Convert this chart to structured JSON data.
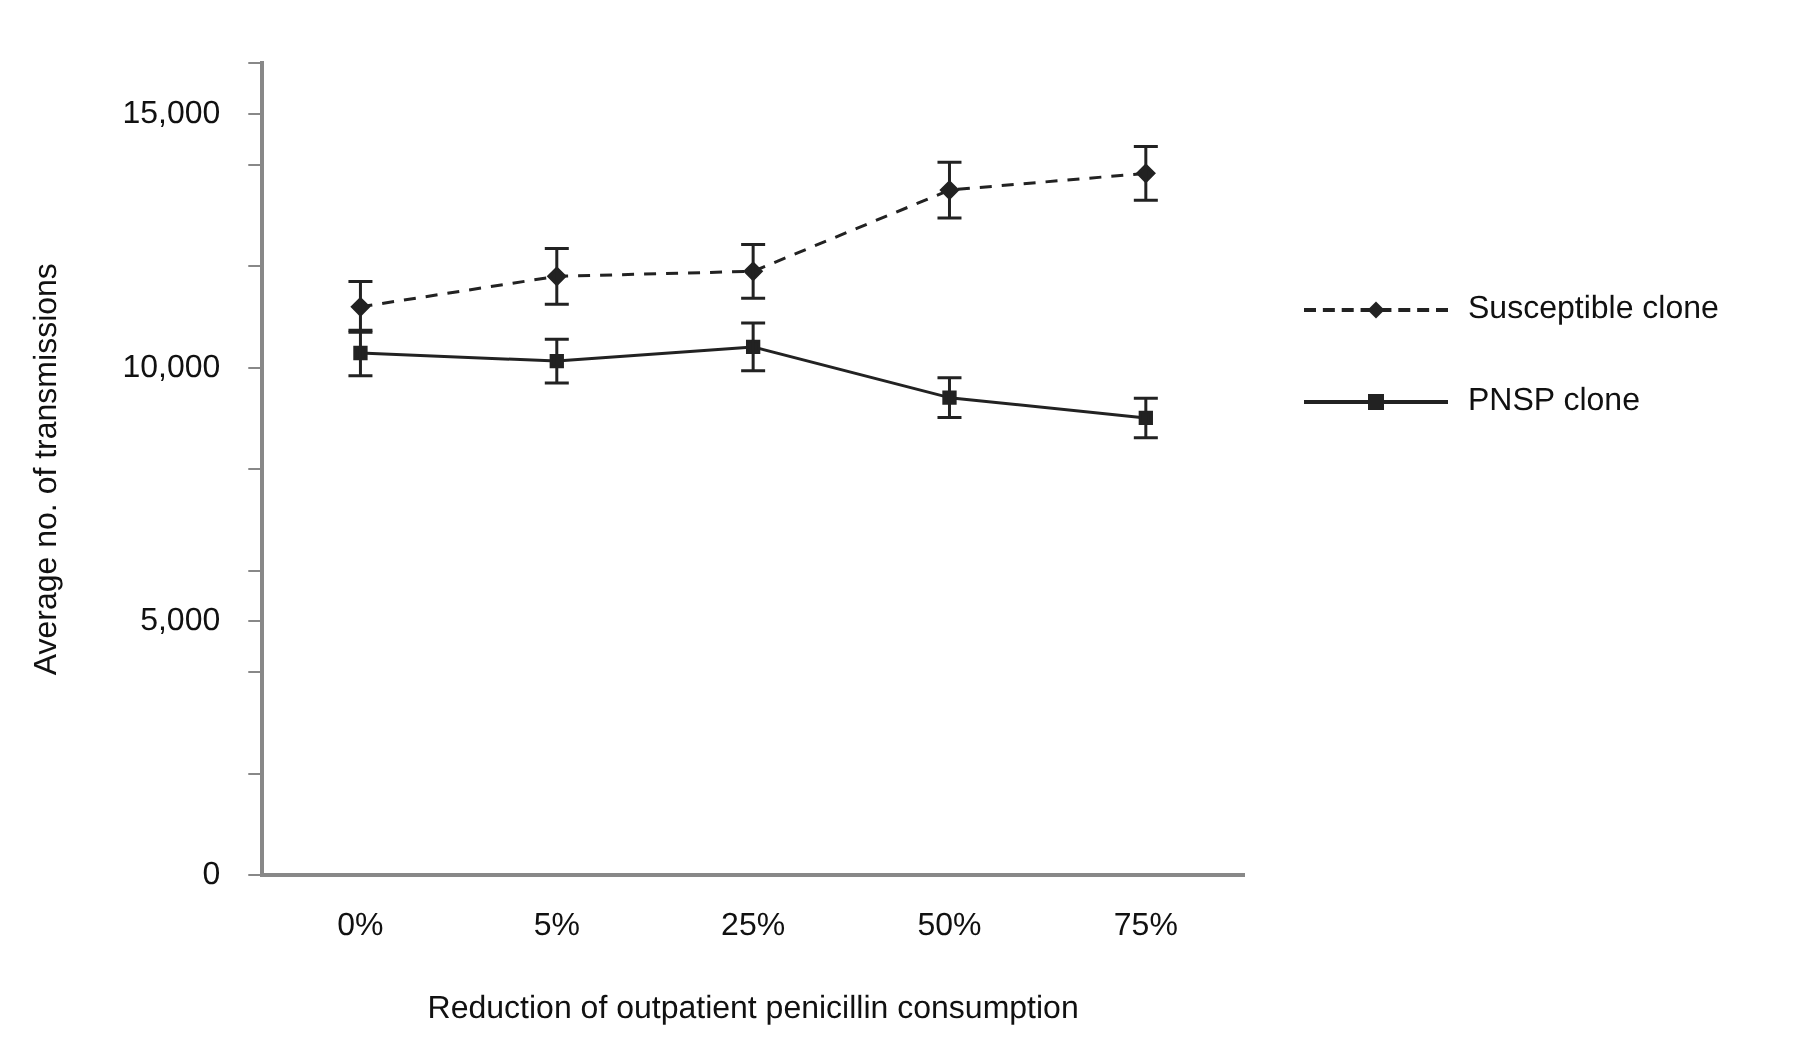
{
  "chart_data": {
    "type": "line",
    "xlabel": "Reduction of outpatient penicillin consumption",
    "ylabel": "Average no. of transmissions",
    "categories": [
      "0%",
      "5%",
      "25%",
      "50%",
      "75%"
    ],
    "series": [
      {
        "name": "Susceptible clone",
        "color": "#222222",
        "marker": "diamond",
        "line_style": "dashed",
        "values": [
          11200,
          11800,
          11900,
          13500,
          13830
        ],
        "errors": [
          500,
          550,
          530,
          550,
          530
        ]
      },
      {
        "name": "PNSP clone",
        "color": "#222222",
        "marker": "square",
        "line_style": "solid",
        "values": [
          10290,
          10130,
          10410,
          9410,
          9010
        ],
        "errors": [
          450,
          430,
          470,
          390,
          390
        ]
      }
    ],
    "ylim": [
      0,
      16000
    ],
    "yticks": [
      0,
      {
        "value": 2000,
        "label": null
      },
      {
        "value": 4000,
        "label": null
      },
      {
        "value": 5000,
        "label": "5,000"
      },
      {
        "value": 6000,
        "label": null
      },
      {
        "value": 8000,
        "label": null
      },
      {
        "value": 10000,
        "label": "10,000"
      },
      {
        "value": 12000,
        "label": null
      },
      {
        "value": 14000,
        "label": null
      },
      {
        "value": 15000,
        "label": "15,000"
      },
      {
        "value": 16000,
        "label": null
      }
    ],
    "grid": false,
    "legend": "right"
  }
}
